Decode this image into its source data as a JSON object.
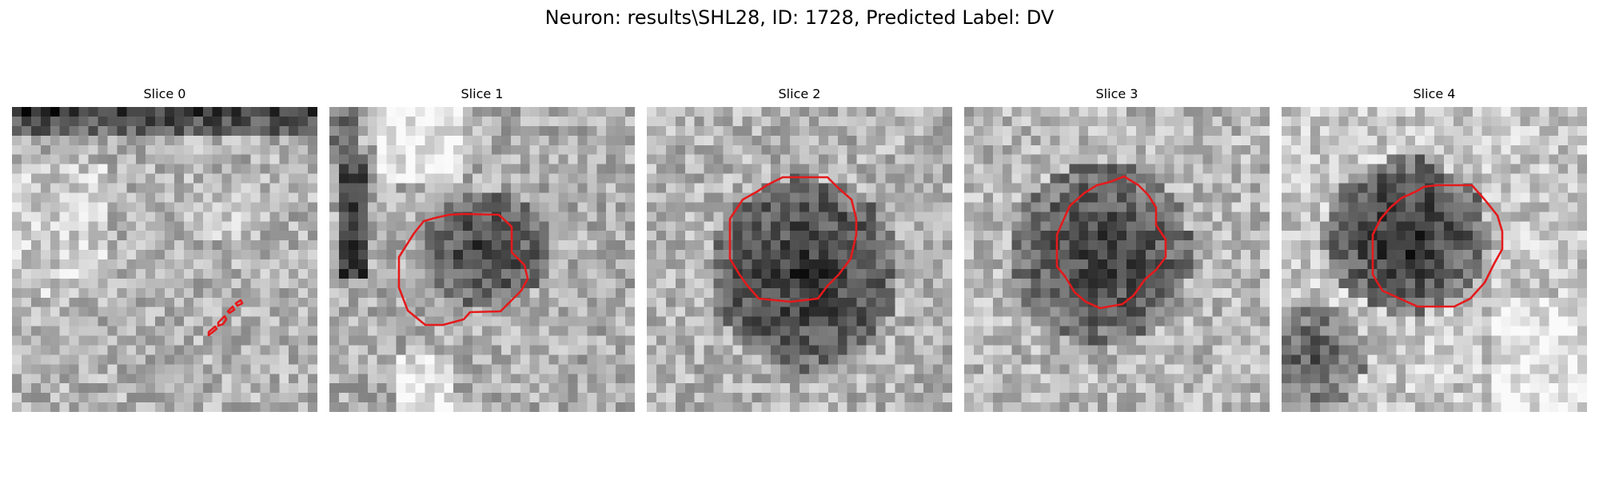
{
  "figure": {
    "title": "Neuron: results\\SHL28, ID: 1728, Predicted Label: DV",
    "outline_color": "#e41a1c"
  },
  "slices": [
    {
      "title": "Slice 0"
    },
    {
      "title": "Slice 1"
    },
    {
      "title": "Slice 2"
    },
    {
      "title": "Slice 3"
    },
    {
      "title": "Slice 4"
    }
  ]
}
